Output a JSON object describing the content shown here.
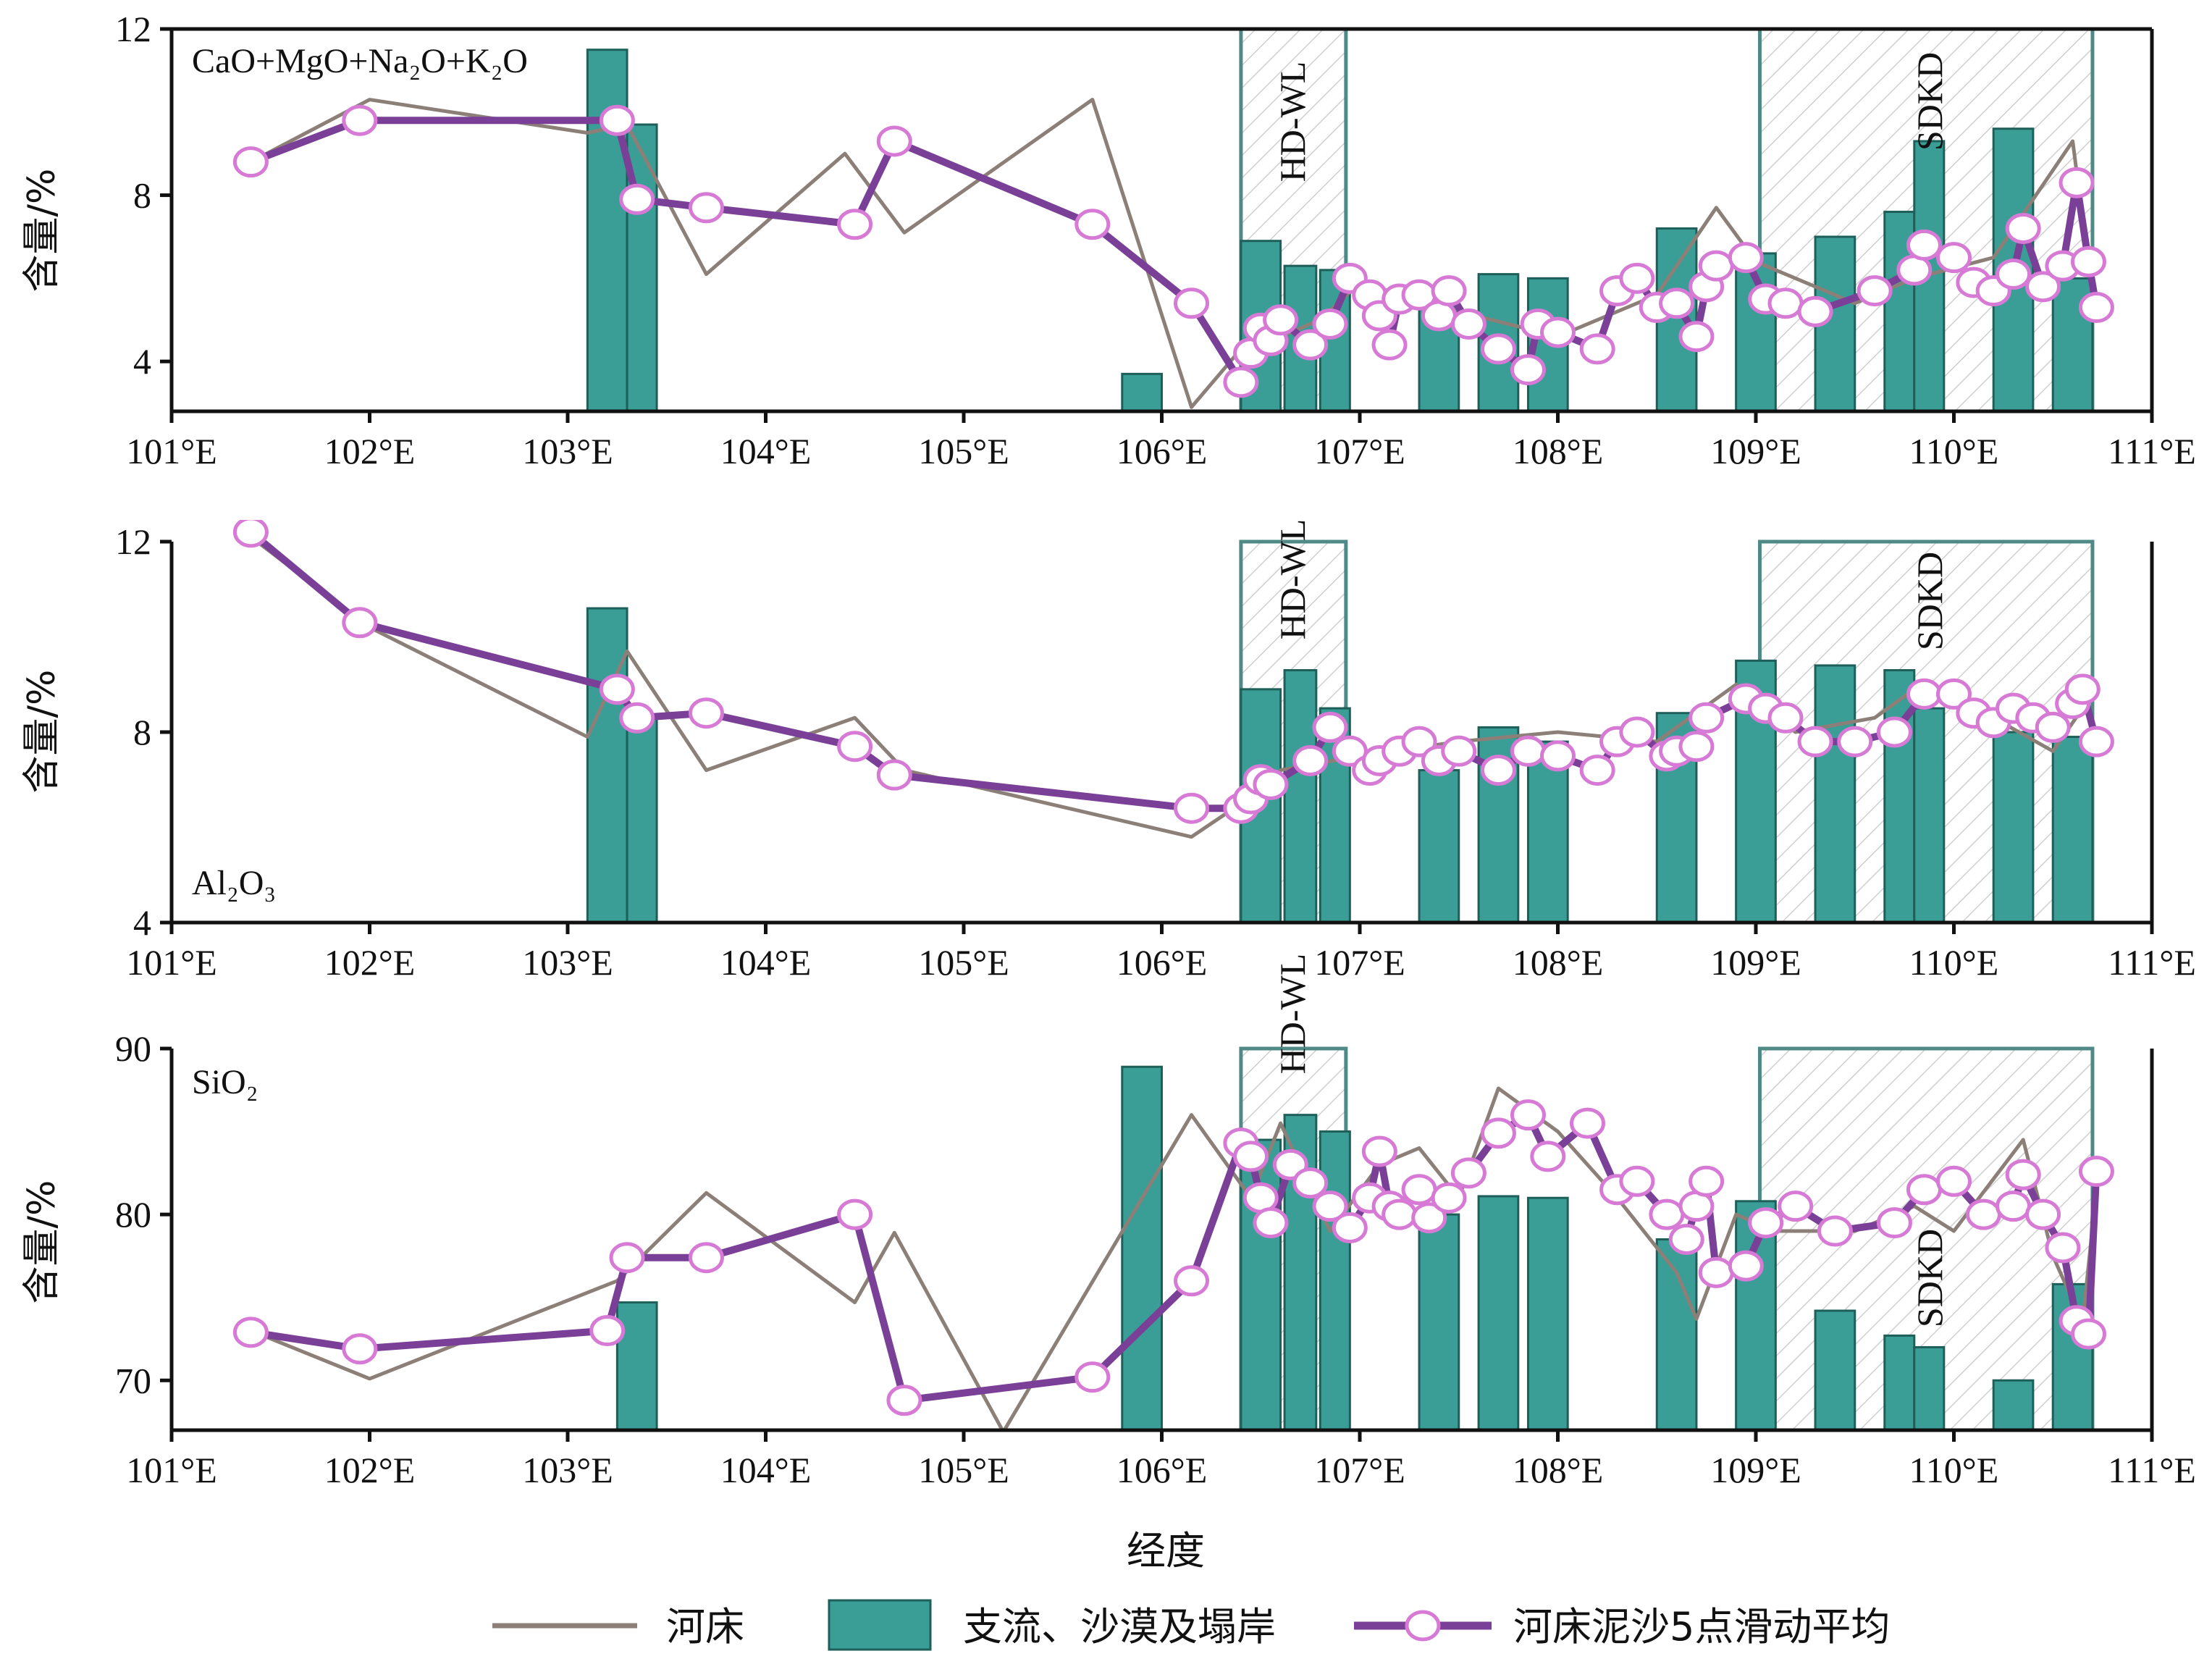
{
  "chart_data": [
    {
      "type": "line",
      "panel_label": "CaO+MgO+Na₂O+K₂O",
      "ylabel": "含量/%",
      "ylim": [
        2.8,
        12
      ],
      "yticks": [
        4,
        8,
        12
      ],
      "xlim": [
        101,
        111
      ],
      "xticks": [
        101,
        102,
        103,
        104,
        105,
        106,
        107,
        108,
        109,
        110,
        111
      ],
      "bars": [
        {
          "x0": 103.1,
          "x1": 103.3,
          "v": 11.5
        },
        {
          "x0": 103.3,
          "x1": 103.45,
          "v": 9.7
        },
        {
          "x0": 105.8,
          "x1": 106.0,
          "v": 3.7
        },
        {
          "x0": 106.4,
          "x1": 106.6,
          "v": 6.9
        },
        {
          "x0": 106.62,
          "x1": 106.78,
          "v": 6.3
        },
        {
          "x0": 106.8,
          "x1": 106.95,
          "v": 6.2
        },
        {
          "x0": 107.3,
          "x1": 107.5,
          "v": 5.5
        },
        {
          "x0": 107.6,
          "x1": 107.8,
          "v": 6.1
        },
        {
          "x0": 107.85,
          "x1": 108.05,
          "v": 6.0
        },
        {
          "x0": 108.5,
          "x1": 108.7,
          "v": 7.2
        },
        {
          "x0": 108.9,
          "x1": 109.1,
          "v": 6.6
        },
        {
          "x0": 109.3,
          "x1": 109.5,
          "v": 7.0
        },
        {
          "x0": 109.65,
          "x1": 109.8,
          "v": 7.6
        },
        {
          "x0": 109.8,
          "x1": 109.95,
          "v": 9.3
        },
        {
          "x0": 110.2,
          "x1": 110.4,
          "v": 9.6
        },
        {
          "x0": 110.5,
          "x1": 110.7,
          "v": 6.0
        }
      ],
      "riverbed": [
        [
          101.4,
          8.8
        ],
        [
          102.0,
          10.3
        ],
        [
          103.1,
          9.5
        ],
        [
          103.3,
          9.7
        ],
        [
          103.7,
          6.1
        ],
        [
          104.4,
          9.0
        ],
        [
          104.7,
          7.1
        ],
        [
          105.65,
          10.3
        ],
        [
          106.15,
          2.9
        ],
        [
          106.4,
          4.3
        ],
        [
          106.6,
          4.6
        ],
        [
          106.8,
          5.0
        ],
        [
          107.0,
          5.9
        ],
        [
          107.5,
          5.2
        ],
        [
          108.0,
          4.6
        ],
        [
          108.5,
          5.6
        ],
        [
          108.8,
          7.7
        ],
        [
          109.0,
          6.4
        ],
        [
          109.5,
          5.4
        ],
        [
          109.8,
          6.0
        ],
        [
          110.2,
          6.5
        ],
        [
          110.6,
          9.3
        ],
        [
          110.7,
          5.6
        ]
      ],
      "moving_avg": [
        [
          101.4,
          8.8
        ],
        [
          101.95,
          9.8
        ],
        [
          103.25,
          9.8
        ],
        [
          103.35,
          7.9
        ],
        [
          103.7,
          7.7
        ],
        [
          104.45,
          7.3
        ],
        [
          104.65,
          9.3
        ],
        [
          105.65,
          7.3
        ],
        [
          106.15,
          5.4
        ],
        [
          106.4,
          3.5
        ],
        [
          106.45,
          4.2
        ],
        [
          106.5,
          4.8
        ],
        [
          106.55,
          4.5
        ],
        [
          106.6,
          5.0
        ],
        [
          106.75,
          4.4
        ],
        [
          106.85,
          4.9
        ],
        [
          106.95,
          6.0
        ],
        [
          107.05,
          5.6
        ],
        [
          107.1,
          5.1
        ],
        [
          107.15,
          4.4
        ],
        [
          107.2,
          5.5
        ],
        [
          107.3,
          5.6
        ],
        [
          107.4,
          5.1
        ],
        [
          107.45,
          5.7
        ],
        [
          107.55,
          4.9
        ],
        [
          107.7,
          4.3
        ],
        [
          107.85,
          3.8
        ],
        [
          107.9,
          4.9
        ],
        [
          108.0,
          4.7
        ],
        [
          108.2,
          4.3
        ],
        [
          108.3,
          5.7
        ],
        [
          108.4,
          6.0
        ],
        [
          108.5,
          5.3
        ],
        [
          108.6,
          5.4
        ],
        [
          108.7,
          4.6
        ],
        [
          108.75,
          5.8
        ],
        [
          108.8,
          6.3
        ],
        [
          108.95,
          6.5
        ],
        [
          109.05,
          5.5
        ],
        [
          109.15,
          5.4
        ],
        [
          109.3,
          5.2
        ],
        [
          109.6,
          5.7
        ],
        [
          109.8,
          6.2
        ],
        [
          109.85,
          6.8
        ],
        [
          110.0,
          6.5
        ],
        [
          110.1,
          5.9
        ],
        [
          110.2,
          5.7
        ],
        [
          110.3,
          6.1
        ],
        [
          110.35,
          7.2
        ],
        [
          110.45,
          5.8
        ],
        [
          110.55,
          6.3
        ],
        [
          110.62,
          8.3
        ],
        [
          110.68,
          6.4
        ],
        [
          110.72,
          5.3
        ]
      ],
      "zones": [
        {
          "label": "HD-WL",
          "x0": 106.4,
          "x1": 106.93
        },
        {
          "label": "SDKD",
          "x0": 109.02,
          "x1": 110.7
        }
      ]
    },
    {
      "type": "line",
      "panel_label": "Al₂O₃",
      "ylabel": "含量/%",
      "ylim": [
        4,
        12
      ],
      "yticks": [
        4,
        8,
        12
      ],
      "xlim": [
        101,
        111
      ],
      "xticks": [
        101,
        102,
        103,
        104,
        105,
        106,
        107,
        108,
        109,
        110,
        111
      ],
      "bars": [
        {
          "x0": 103.1,
          "x1": 103.3,
          "v": 10.6
        },
        {
          "x0": 103.3,
          "x1": 103.45,
          "v": 8.3
        },
        {
          "x0": 106.4,
          "x1": 106.6,
          "v": 8.9
        },
        {
          "x0": 106.62,
          "x1": 106.78,
          "v": 9.3
        },
        {
          "x0": 106.8,
          "x1": 106.95,
          "v": 8.5
        },
        {
          "x0": 107.3,
          "x1": 107.5,
          "v": 7.2
        },
        {
          "x0": 107.6,
          "x1": 107.8,
          "v": 8.1
        },
        {
          "x0": 107.85,
          "x1": 108.05,
          "v": 7.8
        },
        {
          "x0": 108.5,
          "x1": 108.7,
          "v": 8.4
        },
        {
          "x0": 108.9,
          "x1": 109.1,
          "v": 9.5
        },
        {
          "x0": 109.3,
          "x1": 109.5,
          "v": 9.4
        },
        {
          "x0": 109.65,
          "x1": 109.8,
          "v": 9.3
        },
        {
          "x0": 109.8,
          "x1": 109.95,
          "v": 8.5
        },
        {
          "x0": 110.2,
          "x1": 110.4,
          "v": 8.0
        },
        {
          "x0": 110.5,
          "x1": 110.7,
          "v": 7.9
        }
      ],
      "riverbed": [
        [
          101.4,
          12.1
        ],
        [
          102.0,
          10.2
        ],
        [
          103.1,
          7.9
        ],
        [
          103.3,
          9.7
        ],
        [
          103.7,
          7.2
        ],
        [
          104.45,
          8.3
        ],
        [
          104.7,
          7.2
        ],
        [
          106.15,
          5.8
        ],
        [
          106.4,
          6.5
        ],
        [
          106.6,
          7.2
        ],
        [
          107.0,
          7.5
        ],
        [
          107.5,
          7.8
        ],
        [
          108.0,
          8.0
        ],
        [
          108.5,
          7.8
        ],
        [
          108.9,
          9.0
        ],
        [
          109.2,
          8.0
        ],
        [
          109.6,
          8.3
        ],
        [
          109.8,
          8.9
        ],
        [
          110.2,
          8.3
        ],
        [
          110.5,
          7.6
        ],
        [
          110.7,
          8.8
        ]
      ],
      "moving_avg": [
        [
          101.4,
          12.2
        ],
        [
          101.95,
          10.3
        ],
        [
          103.25,
          8.9
        ],
        [
          103.35,
          8.3
        ],
        [
          103.7,
          8.4
        ],
        [
          104.45,
          7.7
        ],
        [
          104.65,
          7.1
        ],
        [
          106.15,
          6.4
        ],
        [
          106.4,
          6.4
        ],
        [
          106.45,
          6.6
        ],
        [
          106.5,
          7.0
        ],
        [
          106.55,
          6.9
        ],
        [
          106.75,
          7.4
        ],
        [
          106.85,
          8.1
        ],
        [
          106.95,
          7.6
        ],
        [
          107.05,
          7.2
        ],
        [
          107.1,
          7.4
        ],
        [
          107.2,
          7.6
        ],
        [
          107.3,
          7.8
        ],
        [
          107.4,
          7.4
        ],
        [
          107.5,
          7.6
        ],
        [
          107.7,
          7.2
        ],
        [
          107.85,
          7.6
        ],
        [
          108.0,
          7.5
        ],
        [
          108.2,
          7.2
        ],
        [
          108.3,
          7.8
        ],
        [
          108.4,
          8.0
        ],
        [
          108.55,
          7.5
        ],
        [
          108.6,
          7.6
        ],
        [
          108.7,
          7.7
        ],
        [
          108.75,
          8.3
        ],
        [
          108.95,
          8.7
        ],
        [
          109.05,
          8.5
        ],
        [
          109.15,
          8.3
        ],
        [
          109.3,
          7.8
        ],
        [
          109.5,
          7.8
        ],
        [
          109.7,
          8.0
        ],
        [
          109.85,
          8.8
        ],
        [
          110.0,
          8.8
        ],
        [
          110.1,
          8.4
        ],
        [
          110.2,
          8.2
        ],
        [
          110.3,
          8.5
        ],
        [
          110.4,
          8.3
        ],
        [
          110.5,
          8.1
        ],
        [
          110.6,
          8.6
        ],
        [
          110.65,
          8.9
        ],
        [
          110.72,
          7.8
        ]
      ],
      "zones": [
        {
          "label": "HD-WL",
          "x0": 106.4,
          "x1": 106.93
        },
        {
          "label": "SDKD",
          "x0": 109.02,
          "x1": 110.7
        }
      ]
    },
    {
      "type": "line",
      "panel_label": "SiO₂",
      "ylabel": "含量/%",
      "ylim": [
        67,
        90
      ],
      "yticks": [
        70,
        80,
        90
      ],
      "xlim": [
        101,
        111
      ],
      "xticks": [
        101,
        102,
        103,
        104,
        105,
        106,
        107,
        108,
        109,
        110,
        111
      ],
      "xlabel": "经度",
      "bars": [
        {
          "x0": 103.25,
          "x1": 103.45,
          "v": 74.7
        },
        {
          "x0": 105.8,
          "x1": 106.0,
          "v": 88.9
        },
        {
          "x0": 106.4,
          "x1": 106.6,
          "v": 84.5
        },
        {
          "x0": 106.62,
          "x1": 106.78,
          "v": 86.0
        },
        {
          "x0": 106.8,
          "x1": 106.95,
          "v": 85.0
        },
        {
          "x0": 107.3,
          "x1": 107.5,
          "v": 80.0
        },
        {
          "x0": 107.6,
          "x1": 107.8,
          "v": 81.1
        },
        {
          "x0": 107.85,
          "x1": 108.05,
          "v": 81.0
        },
        {
          "x0": 108.5,
          "x1": 108.7,
          "v": 78.5
        },
        {
          "x0": 108.9,
          "x1": 109.1,
          "v": 80.8
        },
        {
          "x0": 109.3,
          "x1": 109.5,
          "v": 74.2
        },
        {
          "x0": 109.65,
          "x1": 109.8,
          "v": 72.7
        },
        {
          "x0": 109.8,
          "x1": 109.95,
          "v": 72.0
        },
        {
          "x0": 110.2,
          "x1": 110.4,
          "v": 70.0
        },
        {
          "x0": 110.5,
          "x1": 110.7,
          "v": 75.8
        }
      ],
      "riverbed": [
        [
          101.4,
          73.0
        ],
        [
          102.0,
          70.1
        ],
        [
          103.25,
          76.0
        ],
        [
          103.7,
          81.3
        ],
        [
          104.45,
          74.7
        ],
        [
          104.65,
          78.9
        ],
        [
          105.2,
          66.9
        ],
        [
          106.15,
          86.0
        ],
        [
          106.45,
          81.0
        ],
        [
          106.6,
          85.5
        ],
        [
          106.85,
          79.0
        ],
        [
          107.1,
          83.0
        ],
        [
          107.3,
          84.0
        ],
        [
          107.5,
          81.0
        ],
        [
          107.7,
          87.6
        ],
        [
          108.0,
          85.0
        ],
        [
          108.3,
          81.0
        ],
        [
          108.6,
          76.5
        ],
        [
          108.7,
          73.7
        ],
        [
          108.9,
          80.0
        ],
        [
          109.1,
          79.0
        ],
        [
          109.5,
          79.0
        ],
        [
          109.8,
          80.5
        ],
        [
          110.0,
          79.0
        ],
        [
          110.35,
          84.5
        ],
        [
          110.5,
          77.5
        ],
        [
          110.65,
          73.5
        ],
        [
          110.72,
          81.5
        ]
      ],
      "moving_avg": [
        [
          101.4,
          72.9
        ],
        [
          101.95,
          71.9
        ],
        [
          103.2,
          73.0
        ],
        [
          103.3,
          77.4
        ],
        [
          103.7,
          77.4
        ],
        [
          104.45,
          80.0
        ],
        [
          104.7,
          68.8
        ],
        [
          105.65,
          70.2
        ],
        [
          106.15,
          76.0
        ],
        [
          106.4,
          84.3
        ],
        [
          106.45,
          83.5
        ],
        [
          106.5,
          81.0
        ],
        [
          106.55,
          79.5
        ],
        [
          106.65,
          83.0
        ],
        [
          106.75,
          81.9
        ],
        [
          106.85,
          80.5
        ],
        [
          106.95,
          79.2
        ],
        [
          107.05,
          81.0
        ],
        [
          107.1,
          83.8
        ],
        [
          107.15,
          80.5
        ],
        [
          107.2,
          80.0
        ],
        [
          107.3,
          81.5
        ],
        [
          107.35,
          79.8
        ],
        [
          107.45,
          81.0
        ],
        [
          107.55,
          82.5
        ],
        [
          107.7,
          84.9
        ],
        [
          107.85,
          86.0
        ],
        [
          107.95,
          83.5
        ],
        [
          108.15,
          85.5
        ],
        [
          108.3,
          81.5
        ],
        [
          108.4,
          82.0
        ],
        [
          108.55,
          80.0
        ],
        [
          108.65,
          78.5
        ],
        [
          108.7,
          80.5
        ],
        [
          108.75,
          82.0
        ],
        [
          108.8,
          76.5
        ],
        [
          108.95,
          76.9
        ],
        [
          109.05,
          79.5
        ],
        [
          109.2,
          80.5
        ],
        [
          109.4,
          79.0
        ],
        [
          109.7,
          79.5
        ],
        [
          109.85,
          81.5
        ],
        [
          110.0,
          82.0
        ],
        [
          110.15,
          80.0
        ],
        [
          110.3,
          80.5
        ],
        [
          110.35,
          82.4
        ],
        [
          110.45,
          80.0
        ],
        [
          110.55,
          78.0
        ],
        [
          110.62,
          73.6
        ],
        [
          110.68,
          72.8
        ],
        [
          110.72,
          82.6
        ]
      ],
      "zones": [
        {
          "label": "HD-WL",
          "x0": 106.4,
          "x1": 106.93
        },
        {
          "label": "SDKD",
          "x0": 109.02,
          "x1": 110.7
        }
      ]
    }
  ],
  "xtick_suffix": "°E",
  "legend": {
    "riverbed": "河床",
    "tributary": "支流、沙漠及塌岸",
    "moving_avg": "河床泥沙5点滑动平均"
  },
  "colors": {
    "bar_fill": "#3a9e96",
    "bar_edge": "#1f5f5a",
    "riverbed_line": "#8c7f78",
    "avg_line": "#7a3f96",
    "avg_marker_edge": "#d67ad6",
    "zone_hatch": "#cfcfcf",
    "zone_edge": "#4f8a86"
  }
}
